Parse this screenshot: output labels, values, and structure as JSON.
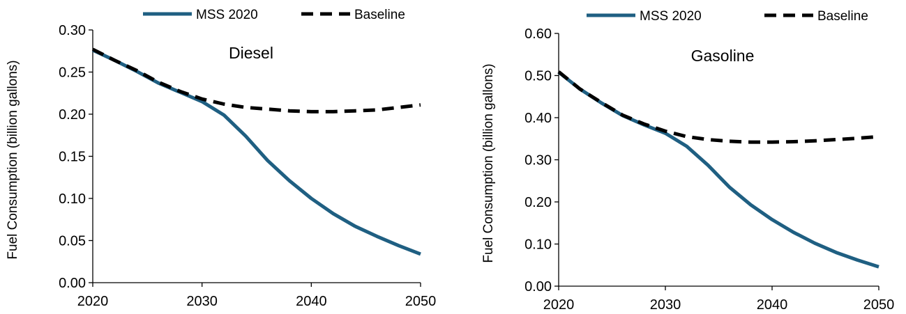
{
  "colors": {
    "mss": "#1f5f82",
    "baseline": "#000000",
    "axis": "#000000"
  },
  "chart_data": [
    {
      "type": "line",
      "title": "Diesel",
      "xlabel": "",
      "ylabel": "Fuel Consumption (billion gallons)",
      "xlim": [
        2020,
        2050
      ],
      "ylim": [
        0,
        0.3
      ],
      "x_ticks": [
        "2020",
        "2030",
        "2040",
        "2050"
      ],
      "y_ticks": [
        "0.00",
        "0.05",
        "0.10",
        "0.15",
        "0.20",
        "0.25",
        "0.30"
      ],
      "legend": [
        "MSS 2020",
        "Baseline"
      ],
      "legend_position": "top",
      "grid": false,
      "series": [
        {
          "name": "MSS 2020",
          "style": "solid",
          "x": [
            2020,
            2022,
            2024,
            2026,
            2028,
            2030,
            2032,
            2034,
            2036,
            2038,
            2040,
            2042,
            2044,
            2046,
            2048,
            2050
          ],
          "values": [
            0.276,
            0.264,
            0.251,
            0.237,
            0.226,
            0.215,
            0.199,
            0.174,
            0.145,
            0.121,
            0.1,
            0.082,
            0.067,
            0.055,
            0.044,
            0.034
          ]
        },
        {
          "name": "Baseline",
          "style": "dashed",
          "x": [
            2020,
            2022,
            2024,
            2026,
            2028,
            2030,
            2032,
            2034,
            2036,
            2038,
            2040,
            2042,
            2044,
            2046,
            2048,
            2050
          ],
          "values": [
            0.277,
            0.264,
            0.252,
            0.238,
            0.227,
            0.218,
            0.212,
            0.208,
            0.206,
            0.204,
            0.203,
            0.203,
            0.204,
            0.205,
            0.208,
            0.211
          ]
        }
      ]
    },
    {
      "type": "line",
      "title": "Gasoline",
      "xlabel": "",
      "ylabel": "Fuel Consumption (billion gallons)",
      "xlim": [
        2020,
        2050
      ],
      "ylim": [
        0,
        0.6
      ],
      "x_ticks": [
        "2020",
        "2030",
        "2040",
        "2050"
      ],
      "y_ticks": [
        "0.00",
        "0.10",
        "0.20",
        "0.30",
        "0.40",
        "0.50",
        "0.60"
      ],
      "legend": [
        "MSS 2020",
        "Baseline"
      ],
      "legend_position": "top",
      "grid": false,
      "series": [
        {
          "name": "MSS 2020",
          "style": "solid",
          "x": [
            2020,
            2022,
            2024,
            2026,
            2028,
            2030,
            2032,
            2034,
            2036,
            2038,
            2040,
            2042,
            2044,
            2046,
            2048,
            2050
          ],
          "values": [
            0.508,
            0.468,
            0.435,
            0.405,
            0.383,
            0.363,
            0.332,
            0.287,
            0.235,
            0.193,
            0.158,
            0.128,
            0.102,
            0.08,
            0.062,
            0.046
          ]
        },
        {
          "name": "Baseline",
          "style": "dashed",
          "x": [
            2020,
            2022,
            2024,
            2026,
            2028,
            2030,
            2032,
            2034,
            2036,
            2038,
            2040,
            2042,
            2044,
            2046,
            2048,
            2050
          ],
          "values": [
            0.509,
            0.468,
            0.436,
            0.406,
            0.385,
            0.368,
            0.355,
            0.348,
            0.344,
            0.342,
            0.342,
            0.343,
            0.345,
            0.348,
            0.351,
            0.355
          ]
        }
      ]
    }
  ]
}
